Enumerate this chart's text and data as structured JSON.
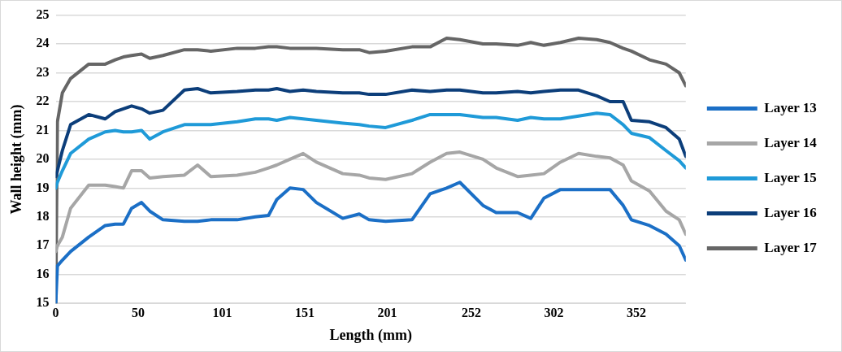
{
  "chart_data": {
    "type": "line",
    "xlabel": "Length (mm)",
    "ylabel": "Wall height (mm)",
    "x": [
      0,
      1,
      4,
      9,
      20,
      30,
      36,
      41,
      46,
      52,
      57,
      65,
      78,
      86,
      94,
      110,
      121,
      129,
      134,
      142,
      150,
      158,
      174,
      184,
      190,
      200,
      216,
      227,
      237,
      245,
      259,
      267,
      280,
      288,
      296,
      306,
      317,
      328,
      336,
      344,
      349,
      360,
      370,
      378,
      382
    ],
    "series": [
      {
        "name": "Layer 13",
        "color": "#1b6fc6",
        "values": [
          15,
          16.3,
          16.5,
          16.8,
          17.3,
          17.7,
          17.75,
          17.75,
          18.3,
          18.5,
          18.2,
          17.9,
          17.85,
          17.85,
          17.9,
          17.9,
          18.0,
          18.05,
          18.6,
          19.0,
          18.95,
          18.5,
          17.95,
          18.1,
          17.9,
          17.85,
          17.9,
          18.8,
          19.0,
          19.2,
          18.4,
          18.15,
          18.15,
          17.95,
          18.65,
          18.95,
          18.95,
          18.95,
          18.95,
          18.4,
          17.9,
          17.7,
          17.4,
          17.0,
          16.5
        ]
      },
      {
        "name": "Layer 14",
        "color": "#a6a6a6",
        "values": [
          16.8,
          17.0,
          17.3,
          18.3,
          19.1,
          19.1,
          19.05,
          19.0,
          19.6,
          19.6,
          19.35,
          19.4,
          19.45,
          19.8,
          19.4,
          19.45,
          19.55,
          19.7,
          19.8,
          20.0,
          20.2,
          19.9,
          19.5,
          19.45,
          19.35,
          19.3,
          19.5,
          19.9,
          20.2,
          20.25,
          20.0,
          19.7,
          19.4,
          19.45,
          19.5,
          19.9,
          20.2,
          20.1,
          20.05,
          19.8,
          19.25,
          18.9,
          18.2,
          17.9,
          17.4
        ]
      },
      {
        "name": "Layer 15",
        "color": "#1f9ad8",
        "values": [
          19.0,
          19.2,
          19.6,
          20.2,
          20.7,
          20.95,
          21.0,
          20.95,
          20.95,
          21.0,
          20.7,
          20.95,
          21.2,
          21.2,
          21.2,
          21.3,
          21.4,
          21.4,
          21.35,
          21.45,
          21.4,
          21.35,
          21.25,
          21.2,
          21.15,
          21.1,
          21.35,
          21.55,
          21.55,
          21.55,
          21.45,
          21.45,
          21.35,
          21.45,
          21.4,
          21.4,
          21.5,
          21.6,
          21.55,
          21.2,
          20.9,
          20.75,
          20.3,
          19.95,
          19.7
        ]
      },
      {
        "name": "Layer 16",
        "color": "#0c3e7a",
        "values": [
          19.4,
          19.6,
          20.3,
          21.2,
          21.55,
          21.4,
          21.65,
          21.75,
          21.85,
          21.75,
          21.6,
          21.7,
          22.4,
          22.45,
          22.3,
          22.35,
          22.4,
          22.4,
          22.45,
          22.35,
          22.4,
          22.35,
          22.3,
          22.3,
          22.25,
          22.25,
          22.4,
          22.35,
          22.4,
          22.4,
          22.3,
          22.3,
          22.35,
          22.3,
          22.35,
          22.4,
          22.4,
          22.2,
          22.0,
          22.0,
          21.35,
          21.3,
          21.1,
          20.7,
          20.1
        ]
      },
      {
        "name": "Layer 17",
        "color": "#666666",
        "values": [
          15,
          21.3,
          22.3,
          22.8,
          23.3,
          23.3,
          23.45,
          23.55,
          23.6,
          23.65,
          23.5,
          23.6,
          23.8,
          23.8,
          23.75,
          23.85,
          23.85,
          23.9,
          23.9,
          23.85,
          23.85,
          23.85,
          23.8,
          23.8,
          23.7,
          23.75,
          23.9,
          23.9,
          24.2,
          24.15,
          24.0,
          24.0,
          23.95,
          24.05,
          23.95,
          24.05,
          24.2,
          24.15,
          24.05,
          23.85,
          23.75,
          23.45,
          23.3,
          23.0,
          22.55
        ]
      }
    ],
    "xlim": [
      0,
      382
    ],
    "xticks": [
      0,
      50,
      101,
      151,
      201,
      252,
      302,
      352
    ],
    "ylim": [
      15,
      25
    ],
    "yticks": [
      15,
      16,
      17,
      18,
      19,
      20,
      21,
      22,
      23,
      24,
      25
    ],
    "grid": "y",
    "legend": "right",
    "line_style": "solid",
    "marker": "none"
  }
}
